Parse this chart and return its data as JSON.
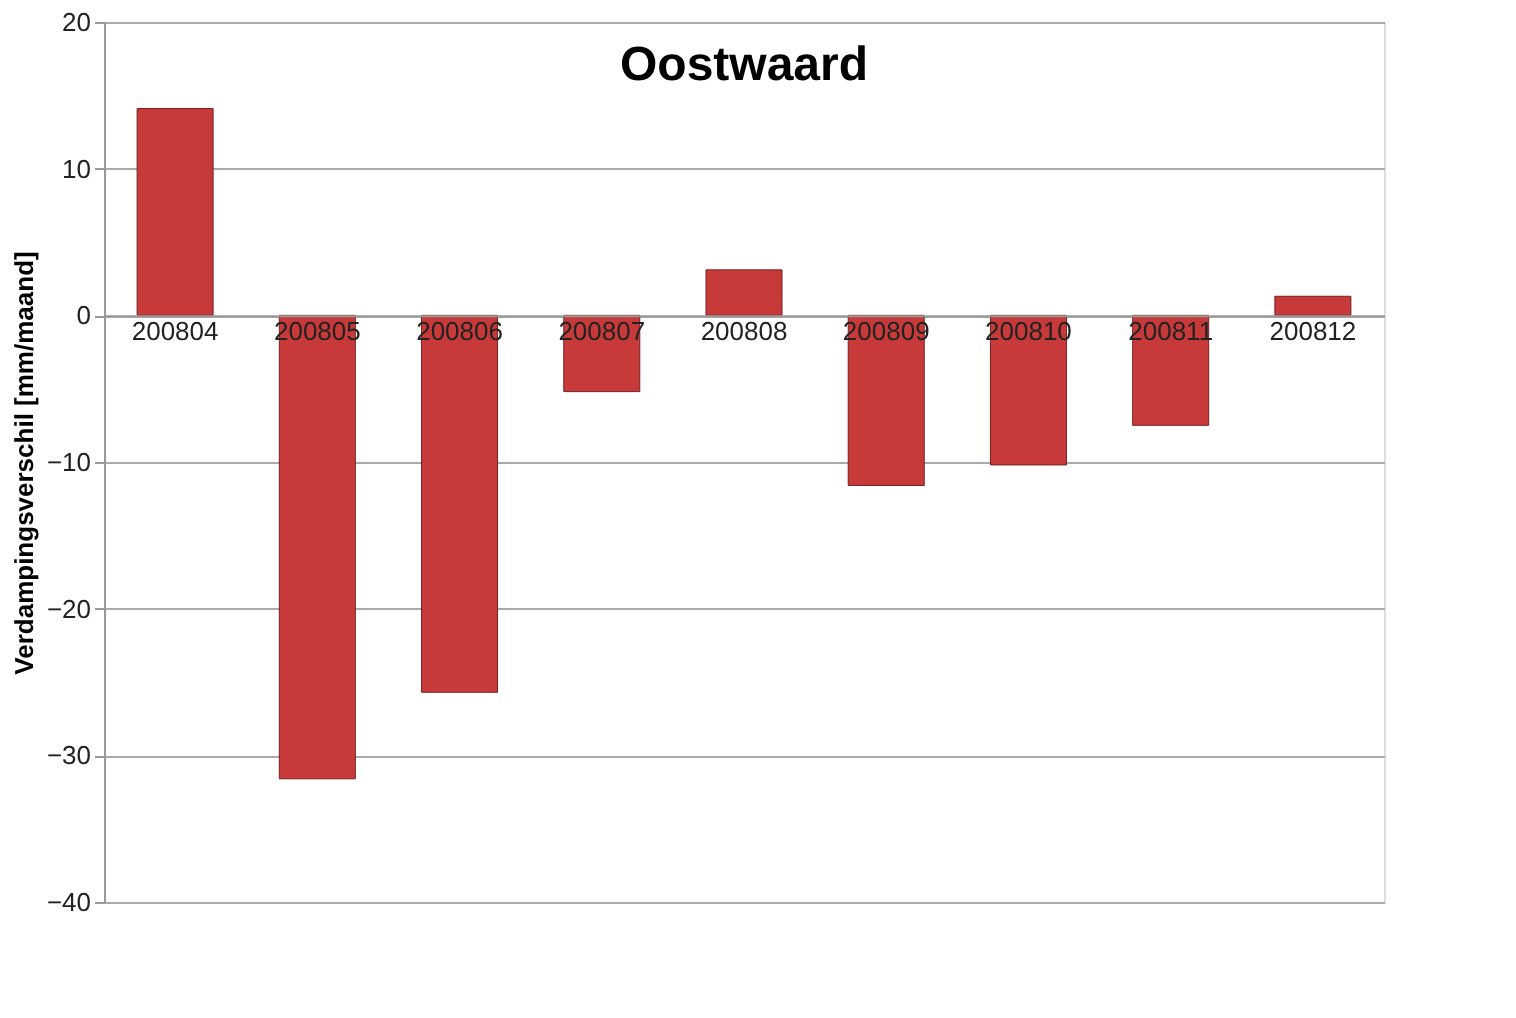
{
  "chart_data": {
    "type": "bar",
    "title": "Oostwaard",
    "ylabel": "Verdampingsverschil  [mm/maand]",
    "categories": [
      "200804",
      "200805",
      "200806",
      "200807",
      "200808",
      "200809",
      "200810",
      "200811",
      "200812"
    ],
    "values": [
      14.1,
      -31.6,
      -25.7,
      -5.2,
      3.1,
      -11.6,
      -10.2,
      -7.5,
      1.3
    ],
    "color": "#c83a3a",
    "ylim": [
      -40,
      20
    ],
    "yticks": [
      -40,
      -30,
      -20,
      -10,
      0,
      10,
      20
    ],
    "grid": "y"
  }
}
